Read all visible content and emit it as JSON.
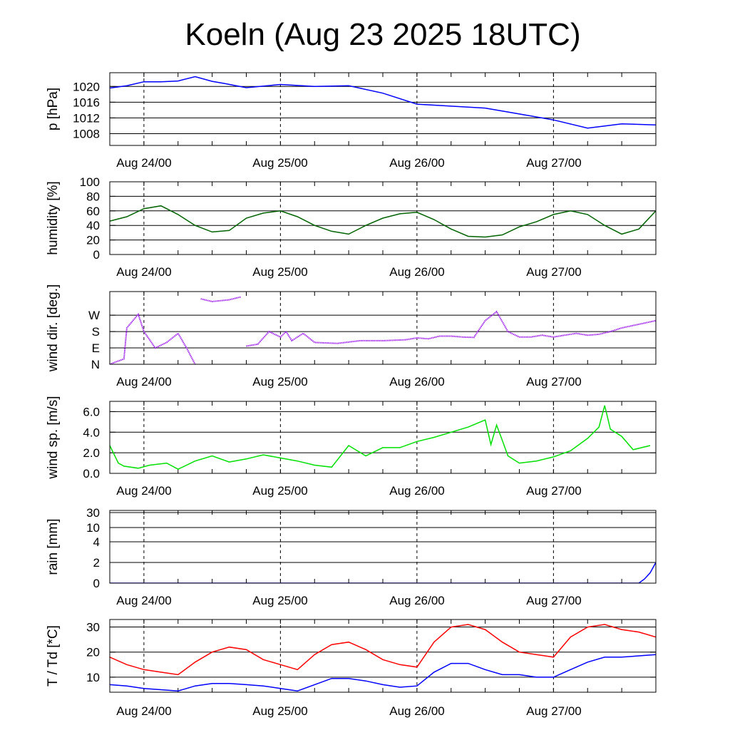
{
  "title": "Koeln (Aug 23 2025 18UTC)",
  "x_tick_labels": [
    "Aug 24/00",
    "Aug 25/00",
    "Aug 26/00",
    "Aug 27/00"
  ],
  "chart_data": [
    {
      "type": "line",
      "ylabel": "p [hPa]",
      "ylim": [
        1005,
        1023.5
      ],
      "yticks": [
        1008,
        1012,
        1016,
        1020
      ],
      "tick_labels": [
        "1008",
        "1012",
        "1016",
        "1020"
      ],
      "x_range_hours": [
        0,
        96
      ],
      "series": [
        {
          "name": "pressure",
          "color": "#0000ff",
          "x": [
            0,
            3,
            6,
            9,
            12,
            15,
            18,
            20,
            24,
            30,
            36,
            42,
            48,
            54,
            60,
            66,
            72,
            78,
            84,
            90,
            96
          ],
          "y": [
            1019.6,
            1020.2,
            1021.2,
            1021.2,
            1021.4,
            1022.5,
            1021.3,
            1020.8,
            1019.7,
            1020.5,
            1020.0,
            1020.2,
            1018.3,
            1015.5,
            1015.0,
            1014.5,
            1013.0,
            1011.5,
            1009.4,
            1010.5,
            1010.2
          ]
        }
      ]
    },
    {
      "type": "line",
      "ylabel": "humidity [%]",
      "ylim": [
        0,
        100
      ],
      "yticks": [
        0,
        20,
        40,
        60,
        80,
        100
      ],
      "tick_labels": [
        "0",
        "20",
        "40",
        "60",
        "80",
        "100"
      ],
      "x_range_hours": [
        0,
        96
      ],
      "series": [
        {
          "name": "humidity",
          "color": "#006400",
          "x": [
            0,
            3,
            6,
            9,
            12,
            15,
            18,
            21,
            24,
            27,
            30,
            33,
            36,
            39,
            42,
            45,
            48,
            51,
            54,
            57,
            60,
            63,
            66,
            69,
            72,
            75,
            78,
            81,
            84,
            87,
            90,
            93,
            96
          ],
          "y": [
            46,
            52,
            63,
            67,
            55,
            40,
            31,
            33,
            50,
            57,
            60,
            52,
            40,
            32,
            28,
            40,
            50,
            56,
            58,
            48,
            35,
            25,
            24,
            27,
            38,
            45,
            55,
            60,
            55,
            40,
            28,
            35,
            60
          ]
        }
      ]
    },
    {
      "type": "scatter",
      "ylabel": "wind dir. [deg.]",
      "ylim": [
        0,
        400
      ],
      "yticks": [
        0,
        90,
        180,
        270
      ],
      "tick_labels": [
        "N",
        "E",
        "S",
        "W"
      ],
      "x_range_hours": [
        0,
        96
      ],
      "series": [
        {
          "name": "wind direction",
          "color": "#a020f0",
          "segments": [
            {
              "x": [
                0,
                2.5,
                3,
                5,
                6,
                8,
                10,
                12,
                13.5,
                15
              ],
              "y": [
                0,
                30,
                200,
                275,
                180,
                90,
                120,
                170,
                90,
                0
              ]
            },
            {
              "x": [
                16,
                18,
                21,
                23
              ],
              "y": [
                360,
                345,
                355,
                370
              ]
            },
            {
              "x": [
                24,
                26,
                28,
                30,
                31,
                32,
                34,
                36,
                40,
                44,
                48,
                52,
                54,
                56,
                58,
                60,
                62,
                64,
                66,
                68,
                70,
                72,
                74,
                76,
                78,
                80,
                82,
                84,
                86,
                88,
                90,
                96
              ],
              "y": [
                100,
                110,
                180,
                150,
                180,
                130,
                170,
                120,
                115,
                130,
                130,
                135,
                145,
                140,
                155,
                155,
                150,
                148,
                240,
                290,
                180,
                150,
                150,
                160,
                150,
                160,
                170,
                160,
                165,
                180,
                200,
                240
              ]
            }
          ]
        }
      ]
    },
    {
      "type": "line",
      "ylabel": "wind sp. [m/s]",
      "ylim": [
        0,
        7
      ],
      "yticks": [
        0,
        2,
        4,
        6
      ],
      "tick_labels": [
        "0.0",
        "2.0",
        "4.0",
        "6.0"
      ],
      "x_range_hours": [
        0,
        96
      ],
      "series": [
        {
          "name": "wind speed",
          "color": "#00e000",
          "x": [
            0,
            1.5,
            2.5,
            5,
            7,
            10,
            12,
            15,
            18,
            21,
            24,
            27,
            30,
            33,
            36,
            39,
            42,
            45,
            48,
            51,
            54,
            57,
            60,
            63,
            66,
            67,
            68,
            69,
            70,
            72,
            75,
            78,
            81,
            84,
            86,
            87,
            88,
            90,
            92,
            95
          ],
          "y": [
            2.7,
            1.0,
            0.7,
            0.5,
            0.8,
            1.0,
            0.4,
            1.2,
            1.7,
            1.1,
            1.4,
            1.8,
            1.5,
            1.2,
            0.8,
            0.6,
            2.7,
            1.7,
            2.5,
            2.5,
            3.1,
            3.5,
            4.0,
            4.5,
            5.2,
            2.8,
            4.7,
            3.2,
            1.7,
            1.0,
            1.2,
            1.6,
            2.2,
            3.4,
            4.5,
            6.6,
            4.3,
            3.6,
            2.3,
            2.7
          ]
        }
      ]
    },
    {
      "type": "line",
      "ylabel": "rain [mm]",
      "ylim": [
        0,
        30
      ],
      "yticks": [
        0,
        2,
        4,
        10,
        30
      ],
      "tick_labels": [
        "0",
        "2",
        "4",
        "10",
        "30"
      ],
      "x_range_hours": [
        0,
        96
      ],
      "series": [
        {
          "name": "rain",
          "color": "#0000ff",
          "x": [
            0,
            93,
            94,
            95,
            96
          ],
          "y": [
            0,
            0,
            0.4,
            1.0,
            2.0
          ]
        }
      ]
    },
    {
      "type": "line",
      "ylabel": "T / Td [*C]",
      "ylim": [
        4,
        33
      ],
      "yticks": [
        10,
        20,
        30
      ],
      "tick_labels": [
        "10",
        "20",
        "30"
      ],
      "x_range_hours": [
        0,
        96
      ],
      "series": [
        {
          "name": "T",
          "color": "#ff0000",
          "x": [
            0,
            3,
            6,
            9,
            12,
            15,
            18,
            21,
            24,
            27,
            30,
            33,
            36,
            39,
            42,
            45,
            48,
            51,
            54,
            57,
            60,
            63,
            66,
            69,
            72,
            75,
            78,
            81,
            84,
            87,
            90,
            93,
            96
          ],
          "y": [
            18,
            15,
            13,
            12,
            11,
            16,
            20,
            22,
            21,
            17,
            15,
            13,
            19,
            23,
            24,
            21,
            17,
            15,
            14,
            24,
            30,
            31,
            29,
            24,
            20,
            19,
            18,
            26,
            30,
            31,
            29,
            28,
            26
          ]
        },
        {
          "name": "Td",
          "color": "#0000ff",
          "x": [
            0,
            3,
            6,
            9,
            12,
            15,
            18,
            21,
            24,
            27,
            30,
            33,
            36,
            39,
            42,
            45,
            48,
            51,
            54,
            57,
            60,
            63,
            66,
            69,
            72,
            75,
            78,
            81,
            84,
            87,
            90,
            93,
            96
          ],
          "y": [
            7,
            6.5,
            5.5,
            5,
            4.5,
            6.5,
            7.5,
            7.5,
            7,
            6.5,
            5.5,
            4.5,
            7,
            9.5,
            9.5,
            8.5,
            7,
            6,
            6.5,
            12,
            15.5,
            15.5,
            13,
            11,
            11,
            10,
            10,
            13,
            16,
            18,
            18,
            18.5,
            19
          ]
        }
      ]
    }
  ]
}
